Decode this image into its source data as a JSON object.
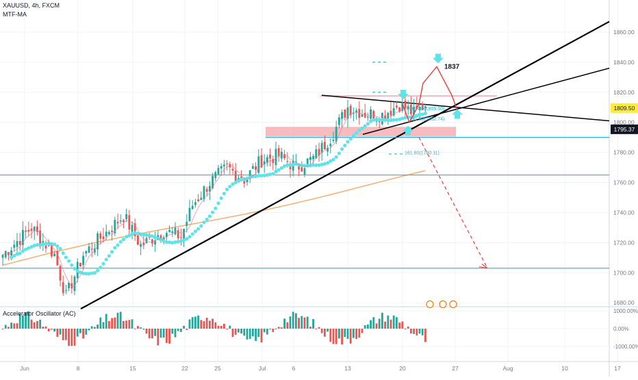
{
  "header": {
    "symbol_line": "XAUUSD, 4h, FXCM",
    "indicator": "MTF-MA"
  },
  "oscillator": {
    "title": "Accelerator Oscillator (AC)",
    "ticks": [
      "1000.00%",
      "0.00%",
      "-1000.00%"
    ]
  },
  "price_axis": {
    "ticks": [
      1680,
      1700,
      1720,
      1740,
      1760,
      1780,
      1800,
      1820,
      1840,
      1860
    ],
    "last_price_label": "1795.37",
    "highlight_label": "1809.50",
    "highlight_color": "#ffeb3b"
  },
  "time_axis": {
    "ticks": [
      "Jun",
      "8",
      "15",
      "22",
      "25",
      "Jul",
      "6",
      "13",
      "20",
      "27",
      "Aug",
      "10",
      "17"
    ]
  },
  "annotations": {
    "target_label": "1837",
    "fib_labels": [
      "161.80(1809.50)",
      "261.80(1802.74)",
      "161.80(1780.11)"
    ]
  },
  "colors": {
    "bull": "#26a69a",
    "bear": "#ef5350",
    "ma_fast": "#5ee3e8",
    "ma_slow": "#f5b27a",
    "level": "#29b6d6",
    "arrow": "#ef3b3b",
    "zone": "#f4a6ab"
  },
  "chart_data": {
    "type": "candlestick",
    "title": "XAUUSD, 4h, FXCM",
    "y_range": [
      1676,
      1880
    ],
    "x_range_bars": [
      0,
      200
    ],
    "candles_approx": {
      "note_values": "weekly anchor closes",
      "anchors": [
        {
          "bar": 0,
          "price": 1712
        },
        {
          "bar": 10,
          "price": 1730
        },
        {
          "bar": 18,
          "price": 1712
        },
        {
          "bar": 22,
          "price": 1684
        },
        {
          "bar": 28,
          "price": 1712
        },
        {
          "bar": 35,
          "price": 1725
        },
        {
          "bar": 42,
          "price": 1738
        },
        {
          "bar": 48,
          "price": 1718
        },
        {
          "bar": 56,
          "price": 1728
        },
        {
          "bar": 62,
          "price": 1724
        },
        {
          "bar": 66,
          "price": 1745
        },
        {
          "bar": 72,
          "price": 1760
        },
        {
          "bar": 78,
          "price": 1770
        },
        {
          "bar": 84,
          "price": 1762
        },
        {
          "bar": 90,
          "price": 1775
        },
        {
          "bar": 96,
          "price": 1778
        },
        {
          "bar": 102,
          "price": 1770
        },
        {
          "bar": 108,
          "price": 1776
        },
        {
          "bar": 114,
          "price": 1790
        },
        {
          "bar": 120,
          "price": 1810
        },
        {
          "bar": 126,
          "price": 1806
        },
        {
          "bar": 132,
          "price": 1805
        },
        {
          "bar": 138,
          "price": 1812
        },
        {
          "bar": 143,
          "price": 1806
        },
        {
          "bar": 147,
          "price": 1812
        }
      ]
    },
    "levels": [
      1790,
      1765,
      1703
    ],
    "target": 1837
  }
}
